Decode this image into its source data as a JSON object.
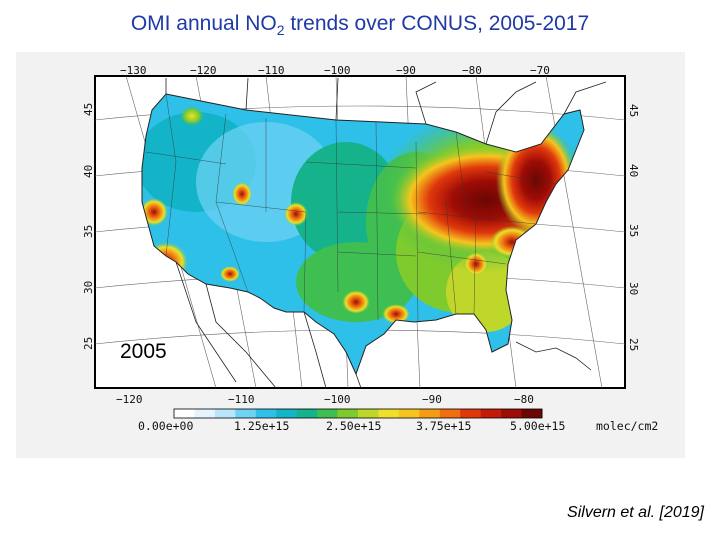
{
  "title": {
    "prefix": "OMI annual NO",
    "subscript": "2",
    "suffix": " trends over CONUS, 2005-2017"
  },
  "citation": "Silvern et al. [2019]",
  "map": {
    "year_label": "2005",
    "top_lon_ticks": [
      "−130",
      "−120",
      "−110",
      "−100",
      "−90",
      "−80",
      "−70"
    ],
    "bottom_lon_ticks": [
      "−120",
      "−110",
      "−100",
      "−90",
      "−80"
    ],
    "left_lat_ticks": [
      "45",
      "40",
      "35",
      "30",
      "25"
    ],
    "right_lat_ticks": [
      "45",
      "40",
      "35",
      "30",
      "25"
    ]
  },
  "colorbar": {
    "labels": [
      "0.00e+00",
      "1.25e+15",
      "2.50e+15",
      "3.75e+15",
      "5.00e+15"
    ],
    "unit": "molec/cm2",
    "colors": [
      "#ffffff",
      "#e6f4ff",
      "#b9e6fb",
      "#6fd3f3",
      "#2fc0ea",
      "#13b4c8",
      "#16b28c",
      "#3fbe52",
      "#7fcb2e",
      "#bfd62a",
      "#eee02a",
      "#f6c51e",
      "#f59c16",
      "#ef6e10",
      "#e0380c",
      "#c41a08",
      "#9e0c06",
      "#6a0603"
    ]
  }
}
